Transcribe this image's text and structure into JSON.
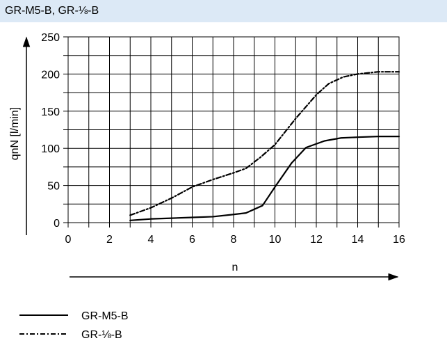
{
  "header": {
    "title": "GR-M5-B, GR-⅛-B"
  },
  "chart_data": {
    "type": "line",
    "ylabel": "qnN [l/min]",
    "xlabel": "n",
    "xlim": [
      0,
      16
    ],
    "ylim": [
      0,
      250
    ],
    "x_ticks": [
      "0",
      "2",
      "4",
      "6",
      "8",
      "10",
      "12",
      "14",
      "16"
    ],
    "y_ticks": [
      "0",
      "50",
      "100",
      "150",
      "200",
      "250"
    ],
    "grid": true,
    "series": [
      {
        "name": "GR-M5-B",
        "style": "solid",
        "x": [
          3,
          4,
          5,
          6,
          7,
          8,
          8.6,
          9.4,
          10,
          10.8,
          11.5,
          12.4,
          13.2,
          14,
          15,
          16
        ],
        "y": [
          3,
          5,
          6,
          7,
          8,
          11,
          13,
          23,
          48,
          80,
          101,
          110,
          114,
          115,
          116,
          116
        ]
      },
      {
        "name": "GR-⅛-B",
        "style": "dash-dot",
        "x": [
          3,
          4,
          5,
          6,
          7,
          8,
          8.6,
          9.3,
          10,
          11,
          12,
          12.6,
          13.3,
          14,
          15,
          16
        ],
        "y": [
          10,
          20,
          33,
          48,
          58,
          67,
          73,
          88,
          105,
          140,
          172,
          187,
          196,
          200,
          203,
          203
        ]
      }
    ],
    "legend_placement": "bottom-left"
  }
}
